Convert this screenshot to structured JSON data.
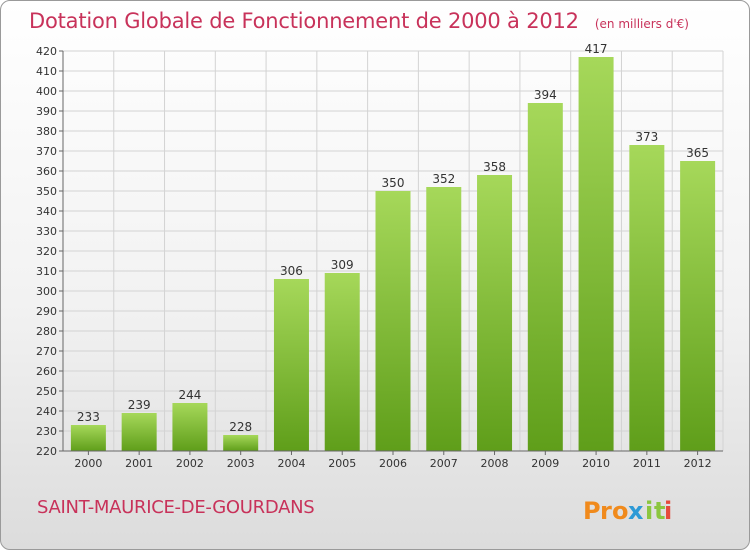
{
  "header": {
    "title": "Dotation Globale de Fonctionnement de 2000 à 2012",
    "unit": "(en milliers d'€)"
  },
  "footer": {
    "commune": "SAINT-MAURICE-DE-GOURDANS",
    "logo_text": "Proxiti",
    "logo_letters": [
      "P",
      "r",
      "o",
      "x",
      "i",
      "t",
      "i"
    ],
    "logo_colors": [
      "#f08a1c",
      "#f08a1c",
      "#f08a1c",
      "#2e9ad6",
      "#8cc63f",
      "#8cc63f",
      "#e64b3c"
    ]
  },
  "colors": {
    "bar_light": "#a6d85a",
    "bar_dark": "#5f9e1a",
    "accent": "#c8325a",
    "grid": "#d3d3d3"
  },
  "chart_data": {
    "type": "bar",
    "title": "Dotation Globale de Fonctionnement de 2000 à 2012",
    "categories": [
      "2000",
      "2001",
      "2002",
      "2003",
      "2004",
      "2005",
      "2006",
      "2007",
      "2008",
      "2009",
      "2010",
      "2011",
      "2012"
    ],
    "values": [
      233,
      239,
      244,
      228,
      306,
      309,
      350,
      352,
      358,
      394,
      417,
      373,
      365
    ],
    "xlabel": "",
    "ylabel": "",
    "ylim": [
      220,
      420
    ],
    "yticks": [
      220,
      230,
      240,
      250,
      260,
      270,
      280,
      290,
      300,
      310,
      320,
      330,
      340,
      350,
      360,
      370,
      380,
      390,
      400,
      410,
      420
    ],
    "grid": true,
    "data_labels": true
  }
}
